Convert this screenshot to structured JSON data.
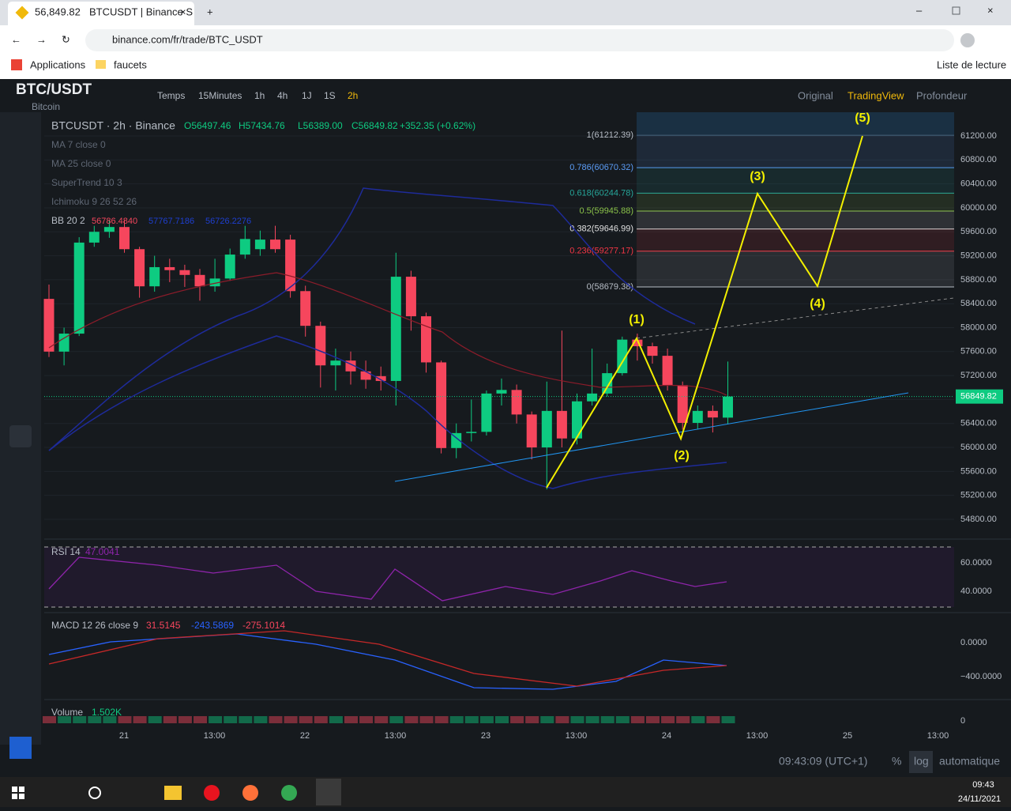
{
  "browser": {
    "tab_price": "56,849.82",
    "tab_title": "BTCUSDT | Binance S",
    "url": "binance.com/fr/trade/BTC_USDT",
    "bookmarks": [
      "Applications",
      "faucets"
    ],
    "reading_list": "Liste de lecture"
  },
  "header": {
    "pair": "BTC/USDT",
    "name": "Bitcoin",
    "intervals": [
      "Temps",
      "15Minutes",
      "1h",
      "4h",
      "1J",
      "1S",
      "2h"
    ],
    "views": [
      "Original",
      "TradingView",
      "Profondeur"
    ]
  },
  "chart_data": {
    "type": "candlestick",
    "title": "BTCUSDT · 2h · Binance",
    "ohlc_labels": [
      "O56497.46",
      "H57434.76",
      "L56389.00",
      "C56849.82",
      "+352.35 (+0.62%)"
    ],
    "indicators": [
      "MA 7 close 0",
      "MA 25 close 0",
      "SuperTrend 10 3",
      "Ichimoku 9 26 52 26"
    ],
    "bb": {
      "label": "BB 20 2",
      "values": [
        "56786.4840",
        "57767.7186",
        "56726.2276"
      ]
    },
    "candles": [
      {
        "o": 58480,
        "h": 58720,
        "l": 57510,
        "c": 57600
      },
      {
        "o": 57600,
        "h": 58000,
        "l": 57370,
        "c": 57900
      },
      {
        "o": 57900,
        "h": 59510,
        "l": 57860,
        "c": 59420
      },
      {
        "o": 59420,
        "h": 59700,
        "l": 59350,
        "c": 59600
      },
      {
        "o": 59600,
        "h": 59800,
        "l": 59500,
        "c": 59680
      },
      {
        "o": 59680,
        "h": 59800,
        "l": 59250,
        "c": 59310
      },
      {
        "o": 59310,
        "h": 59350,
        "l": 58500,
        "c": 58690
      },
      {
        "o": 58690,
        "h": 59200,
        "l": 58600,
        "c": 59010
      },
      {
        "o": 59010,
        "h": 59150,
        "l": 58760,
        "c": 58960
      },
      {
        "o": 58960,
        "h": 59050,
        "l": 58680,
        "c": 58880
      },
      {
        "o": 58880,
        "h": 58980,
        "l": 58450,
        "c": 58690
      },
      {
        "o": 58690,
        "h": 59150,
        "l": 58600,
        "c": 58820
      },
      {
        "o": 58820,
        "h": 59320,
        "l": 58780,
        "c": 59220
      },
      {
        "o": 59220,
        "h": 59700,
        "l": 59150,
        "c": 59480
      },
      {
        "o": 59310,
        "h": 59620,
        "l": 59200,
        "c": 59470
      },
      {
        "o": 59470,
        "h": 59700,
        "l": 59250,
        "c": 59310
      },
      {
        "o": 59470,
        "h": 59550,
        "l": 58500,
        "c": 58610
      },
      {
        "o": 58610,
        "h": 58700,
        "l": 57850,
        "c": 58030
      },
      {
        "o": 58030,
        "h": 58100,
        "l": 57000,
        "c": 57370
      },
      {
        "o": 57370,
        "h": 57650,
        "l": 56950,
        "c": 57450
      },
      {
        "o": 57450,
        "h": 57600,
        "l": 57050,
        "c": 57270
      },
      {
        "o": 57270,
        "h": 57450,
        "l": 56980,
        "c": 57130
      },
      {
        "o": 57190,
        "h": 57350,
        "l": 56950,
        "c": 57110
      },
      {
        "o": 57110,
        "h": 59250,
        "l": 56700,
        "c": 58850
      },
      {
        "o": 58850,
        "h": 58950,
        "l": 57950,
        "c": 58190
      },
      {
        "o": 58190,
        "h": 58250,
        "l": 57250,
        "c": 57420
      },
      {
        "o": 57420,
        "h": 57450,
        "l": 55900,
        "c": 55990
      },
      {
        "o": 55990,
        "h": 56400,
        "l": 55820,
        "c": 56240
      },
      {
        "o": 56240,
        "h": 56800,
        "l": 56100,
        "c": 56260
      },
      {
        "o": 56260,
        "h": 56950,
        "l": 56200,
        "c": 56900
      },
      {
        "o": 56900,
        "h": 57150,
        "l": 56700,
        "c": 56960
      },
      {
        "o": 56960,
        "h": 57050,
        "l": 56400,
        "c": 56550
      },
      {
        "o": 56550,
        "h": 56600,
        "l": 55800,
        "c": 56000
      },
      {
        "o": 56000,
        "h": 57100,
        "l": 55300,
        "c": 56610
      },
      {
        "o": 56610,
        "h": 57950,
        "l": 56000,
        "c": 56150
      },
      {
        "o": 56150,
        "h": 56900,
        "l": 56050,
        "c": 56770
      },
      {
        "o": 56770,
        "h": 57650,
        "l": 56700,
        "c": 56900
      },
      {
        "o": 56900,
        "h": 57400,
        "l": 56850,
        "c": 57240
      },
      {
        "o": 57240,
        "h": 57850,
        "l": 57200,
        "c": 57800
      },
      {
        "o": 57800,
        "h": 57900,
        "l": 57450,
        "c": 57690
      },
      {
        "o": 57690,
        "h": 57750,
        "l": 57400,
        "c": 57530
      },
      {
        "o": 57530,
        "h": 57650,
        "l": 56950,
        "c": 57040
      },
      {
        "o": 57040,
        "h": 57100,
        "l": 56300,
        "c": 56410
      },
      {
        "o": 56410,
        "h": 56700,
        "l": 56300,
        "c": 56610
      },
      {
        "o": 56610,
        "h": 56700,
        "l": 56250,
        "c": 56500
      },
      {
        "o": 56497.46,
        "h": 57434.76,
        "l": 56389.0,
        "c": 56849.82
      }
    ],
    "up_color": "#0ecb81",
    "down_color": "#f6465d",
    "ylim": [
      54470,
      61596
    ],
    "yticks": [
      {
        "value": 54800,
        "label": "54800.00"
      },
      {
        "value": 55200,
        "label": "55200.00"
      },
      {
        "value": 55600,
        "label": "55600.00"
      },
      {
        "value": 56000,
        "label": "56000.00"
      },
      {
        "value": 56400,
        "label": "56400.00"
      },
      {
        "value": 56800,
        "label": "56800.00"
      },
      {
        "value": 57200,
        "label": "57200.00"
      },
      {
        "value": 57600,
        "label": "57600.00"
      },
      {
        "value": 58000,
        "label": "58000.00"
      },
      {
        "value": 58400,
        "label": "58400.00"
      },
      {
        "value": 58800,
        "label": "58800.00"
      },
      {
        "value": 59200,
        "label": "59200.00"
      },
      {
        "value": 59600,
        "label": "59600.00"
      },
      {
        "value": 60000,
        "label": "60000.00"
      },
      {
        "value": 60400,
        "label": "60400.00"
      },
      {
        "value": 60800,
        "label": "60800.00"
      },
      {
        "value": 61200,
        "label": "61200.00"
      }
    ],
    "last_price": {
      "value": 56849.82,
      "label": "56849.82"
    },
    "xtick_labels": [
      "21",
      "13:00",
      "22",
      "13:00",
      "23",
      "13:00",
      "24",
      "13:00",
      "25",
      "13:00"
    ],
    "fib": [
      {
        "label": "1(61212.39)",
        "price": 61212.39,
        "color": "#b7bdc6"
      },
      {
        "label": "0.786(60670.32)",
        "price": 60670.32,
        "color": "#5b9cf6"
      },
      {
        "label": "0.618(60244.78)",
        "price": 60244.78,
        "color": "#26a69a"
      },
      {
        "label": "0.5(59945.88)",
        "price": 59945.88,
        "color": "#8bc34a"
      },
      {
        "label": "0.382(59646.99)",
        "price": 59646.99,
        "color": "#e0e0e0"
      },
      {
        "label": "0.236(59277.17)",
        "price": 59277.17,
        "color": "#f23645"
      },
      {
        "label": "0(58679.38)",
        "price": 58679.38,
        "color": "#b7bdc6"
      }
    ],
    "waves": [
      "(1)",
      "(2)",
      "(3)",
      "(4)",
      "(5)"
    ],
    "rsi": {
      "label": "RSI 14",
      "value": "47.0041",
      "ticks": [
        "60.0000",
        "40.0000"
      ]
    },
    "macd": {
      "label": "MACD 12 26 close 9",
      "values": [
        "31.5145",
        "-243.5869",
        "-275.1014"
      ],
      "ticks": [
        "0.0000",
        "−400.0000"
      ]
    },
    "volume": {
      "label": "Volume",
      "value": "1.502K",
      "tick": "0"
    }
  },
  "footer": {
    "clock": "09:43:09 (UTC+1)",
    "modes": [
      "%",
      "log",
      "automatique"
    ]
  },
  "taskbar": {
    "time": "09:43",
    "date": "24/11/2021"
  }
}
